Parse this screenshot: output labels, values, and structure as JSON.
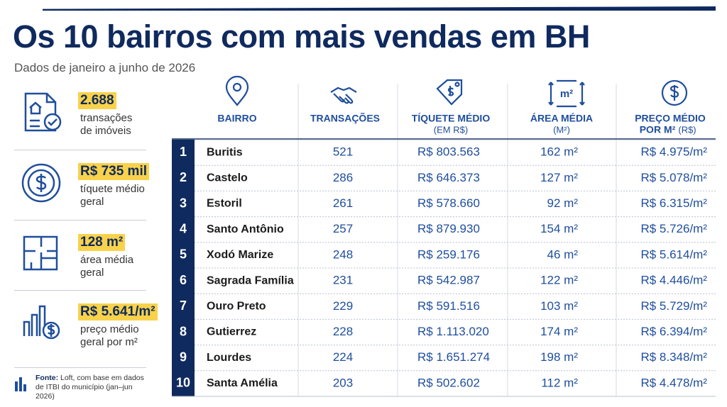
{
  "header": {
    "title": "Os 10 bairros com mais vendas em BH",
    "subtitle": "Dados de janeiro a junho de 2026"
  },
  "stats": [
    {
      "value": "2.688",
      "label": [
        "transações",
        "de imóveis"
      ]
    },
    {
      "value": "R$ 735 mil",
      "label": [
        "tíquete médio",
        "geral"
      ]
    },
    {
      "value": "128 m²",
      "label": [
        "área média",
        "geral"
      ]
    },
    {
      "value": "R$ 5.641/m²",
      "label": [
        "preço médio",
        "geral por m²"
      ]
    }
  ],
  "source": {
    "label": "Fonte:",
    "text": "Loft, com base em dados de ITBI do município (jan–jun 2026)"
  },
  "table": {
    "area_icon_text": "m²",
    "columns": [
      {
        "title": [
          "BAIRRO"
        ]
      },
      {
        "title": [
          "TRANSAÇÕES"
        ]
      },
      {
        "title": [
          "TÍQUETE MÉDIO"
        ],
        "subtitle": "(EM R$)"
      },
      {
        "title": [
          "ÁREA MÉDIA"
        ],
        "subtitle": "(M²)"
      },
      {
        "title": [
          "PREÇO MÉDIO",
          "POR M²"
        ],
        "subtitle": "(R$)"
      }
    ],
    "rows": [
      [
        "1",
        "Buritis",
        "521",
        "R$ 803.563",
        "162 m²",
        "R$ 4.975/m²"
      ],
      [
        "2",
        "Castelo",
        "286",
        "R$ 646.373",
        "127 m²",
        "R$ 5.078/m²"
      ],
      [
        "3",
        "Estoril",
        "261",
        "R$ 578.660",
        "92 m²",
        "R$ 6.315/m²"
      ],
      [
        "4",
        "Santo Antônio",
        "257",
        "R$ 879.930",
        "154 m²",
        "R$ 5.726/m²"
      ],
      [
        "5",
        "Xodó Marize",
        "248",
        "R$ 259.176",
        "46 m²",
        "R$ 5.614/m²"
      ],
      [
        "6",
        "Sagrada Família",
        "231",
        "R$ 542.987",
        "122 m²",
        "R$ 4.446/m²"
      ],
      [
        "7",
        "Ouro Preto",
        "229",
        "R$ 591.516",
        "103 m²",
        "R$ 5.729/m²"
      ],
      [
        "8",
        "Gutierrez",
        "228",
        "R$ 1.113.020",
        "174 m²",
        "R$ 6.394/m²"
      ],
      [
        "9",
        "Lourdes",
        "224",
        "R$ 1.651.274",
        "198 m²",
        "R$ 8.348/m²"
      ],
      [
        "10",
        "Santa Amélia",
        "203",
        "R$ 502.602",
        "112 m²",
        "R$ 4.478/m²"
      ]
    ]
  }
}
